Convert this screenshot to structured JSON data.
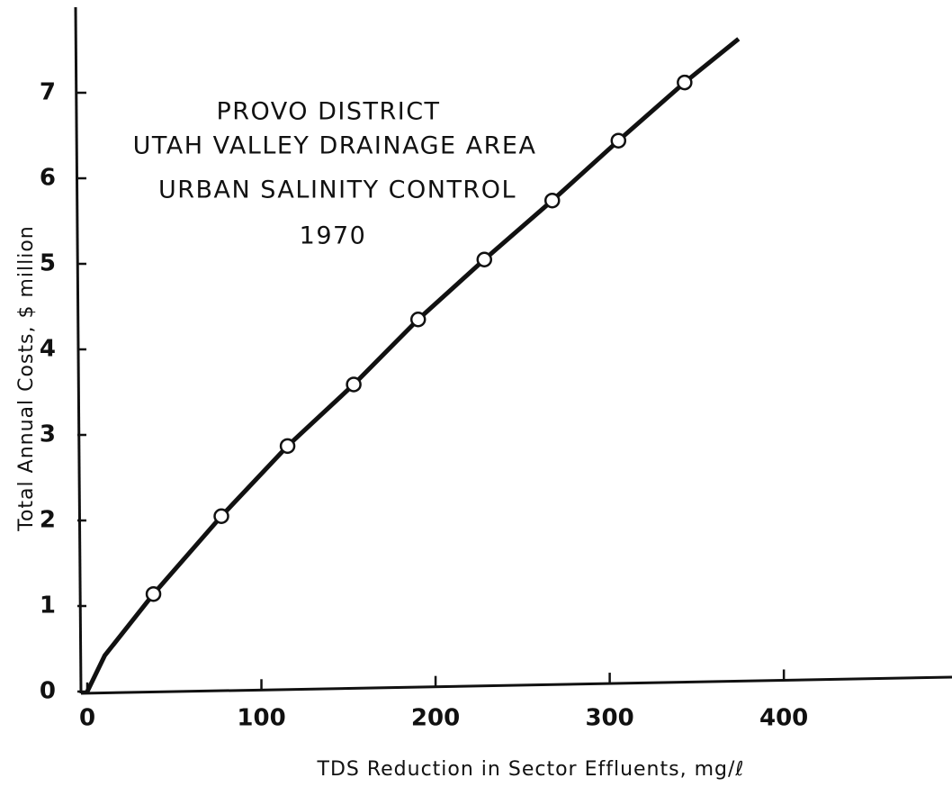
{
  "chart_data": {
    "type": "line",
    "annotations": [
      "PROVO DISTRICT",
      "UTAH VALLEY DRAINAGE AREA",
      "URBAN SALINITY CONTROL",
      "1970"
    ],
    "xlabel": "TDS Reduction in Sector Effluents, mg/ℓ",
    "ylabel": "Total Annual Costs, $ million",
    "series": [
      {
        "color": "#111111",
        "marker": false,
        "x": [
          0,
          10,
          38,
          77,
          115,
          153,
          190,
          228,
          267,
          305,
          343,
          374
        ],
        "values": [
          0,
          0.42,
          1.14,
          2.05,
          2.87,
          3.59,
          4.35,
          5.05,
          5.74,
          6.44,
          7.12,
          7.63
        ]
      },
      {
        "color": "#111111",
        "marker": true,
        "x": [
          38,
          77,
          115,
          153,
          190,
          228,
          267,
          305,
          343
        ],
        "values": [
          1.14,
          2.05,
          2.87,
          3.59,
          4.35,
          5.05,
          5.74,
          6.44,
          7.12
        ]
      }
    ],
    "xlim": [
      0,
      495
    ],
    "ylim": [
      0,
      8
    ],
    "xticks": [
      0,
      100,
      200,
      300,
      400
    ],
    "yticks": [
      0,
      1,
      2,
      3,
      4,
      5,
      6,
      7
    ],
    "grid": false
  }
}
